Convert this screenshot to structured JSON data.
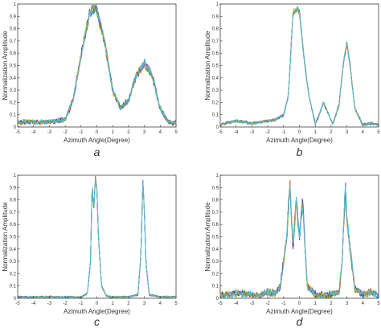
{
  "chart_data": [
    {
      "panel": "a",
      "type": "line",
      "xlabel": "Azimuth Angle(Degree)",
      "ylabel": "Normalization Amplitude",
      "xlim": [
        -5,
        5
      ],
      "ylim": [
        0,
        1
      ],
      "xticks": [
        -5,
        -4,
        -3,
        -2,
        -1,
        0,
        1,
        2,
        3,
        4,
        5
      ],
      "yticks": [
        0,
        0.1,
        0.2,
        0.3,
        0.4,
        0.5,
        0.6,
        0.7,
        0.8,
        0.9,
        1
      ],
      "ytick_labels": [
        "0",
        "0.1",
        "0.2",
        "0.3",
        "0.4",
        "0.5",
        "0.6",
        "0.7",
        "0.8",
        "0.9",
        "1"
      ],
      "grid": false,
      "series_count": 6,
      "envelope": {
        "x": [
          -5,
          -4,
          -3,
          -2,
          -1.5,
          -1,
          -0.5,
          -0.2,
          0,
          0.5,
          1,
          1.5,
          2,
          2.5,
          3,
          3.5,
          4,
          4.5,
          5
        ],
        "y": [
          0.04,
          0.04,
          0.04,
          0.06,
          0.22,
          0.58,
          0.9,
          0.97,
          0.95,
          0.68,
          0.3,
          0.15,
          0.22,
          0.42,
          0.52,
          0.42,
          0.15,
          0.04,
          0.03
        ]
      },
      "noise": 0.035
    },
    {
      "panel": "b",
      "type": "line",
      "xlabel": "Azimuth Angle(Degree)",
      "ylabel": "Normalization Amplitude",
      "xlim": [
        -5,
        5
      ],
      "ylim": [
        0,
        1
      ],
      "xticks": [
        -5,
        -4,
        -3,
        -2,
        -1,
        0,
        1,
        2,
        3,
        4,
        5
      ],
      "yticks": [
        0,
        0.1,
        0.2,
        0.3,
        0.4,
        0.5,
        0.6,
        0.7,
        0.8,
        0.9,
        1
      ],
      "ytick_labels": [
        "0",
        "0.1",
        "0.2",
        "0.3",
        "0.4",
        "0.5",
        "0.6",
        "0.7",
        "0.8",
        "0.9",
        "1"
      ],
      "grid": false,
      "series_count": 6,
      "envelope": {
        "x": [
          -5,
          -4,
          -3,
          -2,
          -1.5,
          -1,
          -0.7,
          -0.4,
          -0.2,
          0,
          0.3,
          0.6,
          1,
          1.2,
          1.5,
          1.8,
          2.1,
          2.5,
          2.8,
          3,
          3.2,
          3.5,
          4,
          4.5,
          5
        ],
        "y": [
          0.02,
          0.05,
          0.03,
          0.05,
          0.06,
          0.1,
          0.25,
          0.93,
          0.96,
          0.94,
          0.55,
          0.25,
          0.03,
          0.08,
          0.2,
          0.12,
          0.02,
          0.18,
          0.55,
          0.67,
          0.5,
          0.15,
          0.02,
          0.03,
          0.02
        ]
      },
      "noise": 0.02
    },
    {
      "panel": "c",
      "type": "line",
      "xlabel": "Azimuth Angle(Degree)",
      "ylabel": "Normalization Amplitude",
      "xlim": [
        -5,
        5
      ],
      "ylim": [
        0,
        1
      ],
      "xticks": [
        -5,
        -4,
        -3,
        -2,
        -1,
        0,
        1,
        2,
        3,
        4,
        5
      ],
      "yticks": [
        0,
        0.1,
        0.2,
        0.3,
        0.4,
        0.5,
        0.6,
        0.7,
        0.8,
        0.9,
        1
      ],
      "ytick_labels": [
        "0",
        "0.1",
        "0.2",
        "0.3",
        "0.4",
        "0.5",
        "0.6",
        "0.7",
        "0.8",
        "0.9",
        "1"
      ],
      "grid": false,
      "series_count": 6,
      "envelope": {
        "x": [
          -5,
          -2,
          -1,
          -0.6,
          -0.4,
          -0.3,
          -0.2,
          -0.1,
          0,
          0.1,
          0.3,
          0.6,
          1,
          2,
          2.6,
          2.8,
          2.9,
          3.0,
          3.1,
          3.3,
          4,
          5
        ],
        "y": [
          0.01,
          0.01,
          0.01,
          0.04,
          0.3,
          0.95,
          0.7,
          0.98,
          0.9,
          0.5,
          0.1,
          0.02,
          0.01,
          0.01,
          0.03,
          0.4,
          0.98,
          0.7,
          0.3,
          0.03,
          0.01,
          0.01
        ]
      },
      "noise": 0.015
    },
    {
      "panel": "d",
      "type": "line",
      "xlabel": "Azimuth Angle(Degree)",
      "ylabel": "Normalization Amplitude",
      "xlim": [
        -5,
        5
      ],
      "ylim": [
        0,
        1
      ],
      "xticks": [
        -5,
        -4,
        -3,
        -2,
        -1,
        0,
        1,
        2,
        3,
        4,
        5
      ],
      "yticks": [
        0,
        0.1,
        0.2,
        0.3,
        0.4,
        0.5,
        0.6,
        0.7,
        0.8,
        0.9,
        1
      ],
      "ytick_labels": [
        "0",
        "0.1",
        "0.2",
        "0.3",
        "0.4",
        "0.5",
        "0.6",
        "0.7",
        "0.8",
        "0.9",
        "1"
      ],
      "grid": false,
      "series_count": 6,
      "envelope": {
        "x": [
          -5,
          -4,
          -3,
          -2.5,
          -2,
          -1.5,
          -1.2,
          -0.8,
          -0.6,
          -0.4,
          -0.2,
          0,
          0.2,
          0.5,
          1,
          1.5,
          2,
          2.5,
          2.7,
          2.9,
          3.0,
          3.2,
          3.5,
          4,
          4.5,
          5
        ],
        "y": [
          0.02,
          0.04,
          0.03,
          0.02,
          0.05,
          0.04,
          0.1,
          0.5,
          0.92,
          0.4,
          0.8,
          0.5,
          0.78,
          0.1,
          0.03,
          0.02,
          0.03,
          0.05,
          0.3,
          0.92,
          0.65,
          0.4,
          0.08,
          0.03,
          0.05,
          0.02
        ]
      },
      "noise": 0.05
    }
  ],
  "panel_labels": [
    "a",
    "b",
    "c",
    "d"
  ],
  "colors": [
    "#0072BD",
    "#D95319",
    "#EDB120",
    "#7E2F8E",
    "#77AC30",
    "#4DBEEE",
    "#A2142F"
  ]
}
